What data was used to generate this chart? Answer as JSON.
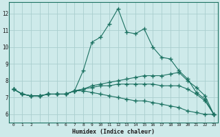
{
  "xlabel": "Humidex (Indice chaleur)",
  "background_color": "#ceeaea",
  "grid_color": "#aacece",
  "line_color": "#1a7060",
  "xlim": [
    -0.5,
    23.5
  ],
  "ylim": [
    5.5,
    12.7
  ],
  "xtick_labels": [
    "0",
    "1",
    "2",
    "",
    "4",
    "5",
    "6",
    "7",
    "8",
    "9",
    "10",
    "11",
    "12",
    "13",
    "14",
    "15",
    "16",
    "17",
    "18",
    "19",
    "20",
    "21",
    "22",
    "23"
  ],
  "yticks": [
    6,
    7,
    8,
    9,
    10,
    11,
    12
  ],
  "series": [
    [
      7.5,
      7.2,
      7.1,
      7.1,
      7.2,
      7.2,
      7.2,
      7.4,
      8.6,
      10.3,
      10.6,
      11.4,
      12.3,
      10.9,
      10.8,
      11.1,
      10.0,
      9.4,
      9.3,
      8.6,
      8.1,
      7.3,
      6.9,
      6.0
    ],
    [
      7.5,
      7.2,
      7.1,
      7.1,
      7.2,
      7.2,
      7.2,
      7.4,
      7.5,
      7.7,
      7.8,
      7.9,
      8.0,
      8.1,
      8.2,
      8.3,
      8.3,
      8.3,
      8.4,
      8.5,
      8.0,
      7.6,
      7.1,
      6.0
    ],
    [
      7.5,
      7.2,
      7.1,
      7.1,
      7.2,
      7.2,
      7.2,
      7.4,
      7.5,
      7.6,
      7.7,
      7.7,
      7.8,
      7.8,
      7.8,
      7.8,
      7.8,
      7.7,
      7.7,
      7.7,
      7.5,
      7.2,
      6.8,
      6.0
    ],
    [
      7.5,
      7.2,
      7.1,
      7.1,
      7.2,
      7.2,
      7.2,
      7.4,
      7.4,
      7.3,
      7.2,
      7.1,
      7.0,
      6.9,
      6.8,
      6.8,
      6.7,
      6.6,
      6.5,
      6.4,
      6.2,
      6.1,
      6.0,
      6.0
    ]
  ]
}
